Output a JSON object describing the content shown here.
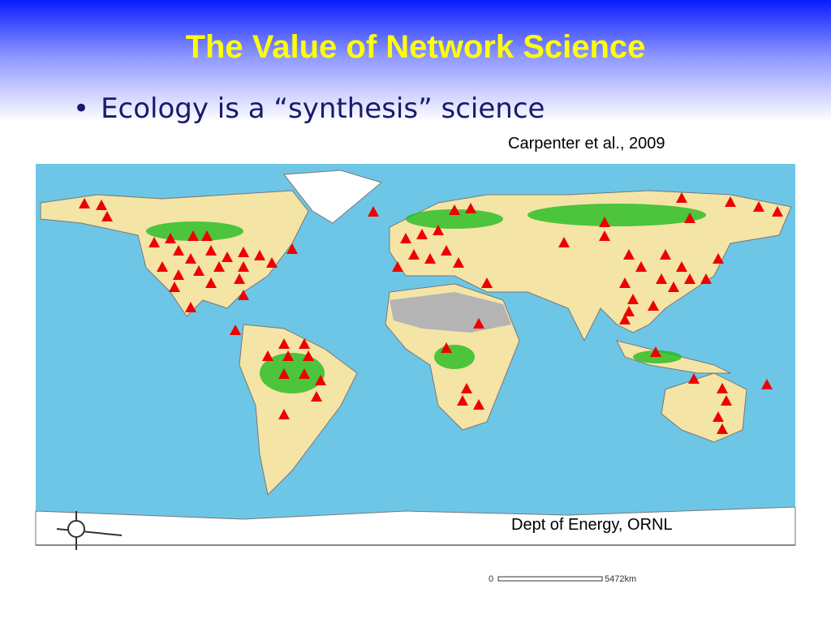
{
  "slide": {
    "title": "The Value of Network Science",
    "bullets": [
      "Ecology is a “synthesis” science"
    ],
    "citation": "Carpenter et al., 2009",
    "map": {
      "credit": "Dept of Energy, ORNL",
      "scale_start": "0",
      "scale_end": "5472km"
    }
  }
}
